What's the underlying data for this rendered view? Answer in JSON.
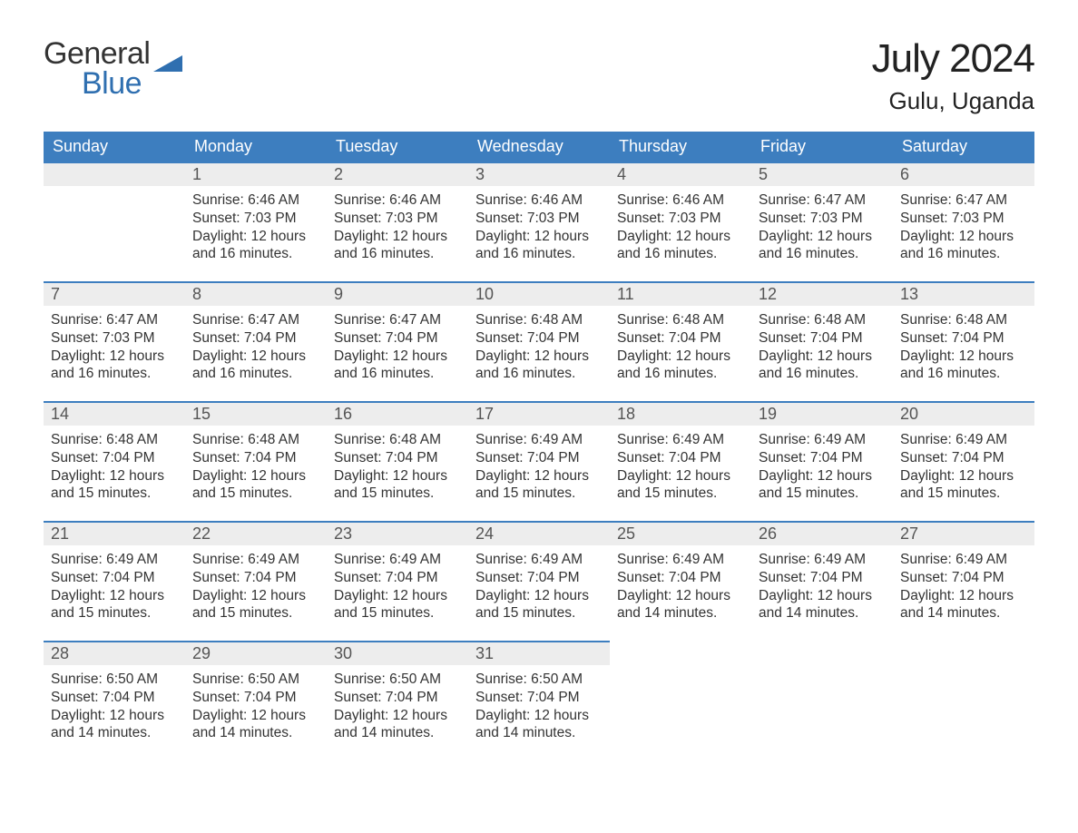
{
  "brand": {
    "word1": "General",
    "word2": "Blue",
    "accent": "#2f6fb0"
  },
  "header": {
    "title": "July 2024",
    "location": "Gulu, Uganda"
  },
  "colors": {
    "header_bg": "#3d7ebf",
    "header_text": "#ffffff",
    "daynum_bg": "#ededed",
    "row_border": "#3d7ebf",
    "page_bg": "#ffffff",
    "text": "#333333"
  },
  "typography": {
    "title_fontsize": 44,
    "location_fontsize": 26,
    "weekday_fontsize": 18,
    "body_fontsize": 15.5
  },
  "weekdays": [
    "Sunday",
    "Monday",
    "Tuesday",
    "Wednesday",
    "Thursday",
    "Friday",
    "Saturday"
  ],
  "labels": {
    "sunrise": "Sunrise:",
    "sunset": "Sunset:",
    "daylight": "Daylight:"
  },
  "grid": {
    "rows": 5,
    "cols": 7,
    "first_weekday_index": 1,
    "days_in_month": 31
  },
  "days": [
    {
      "n": 1,
      "sunrise": "6:46 AM",
      "sunset": "7:03 PM",
      "daylight": "12 hours and 16 minutes."
    },
    {
      "n": 2,
      "sunrise": "6:46 AM",
      "sunset": "7:03 PM",
      "daylight": "12 hours and 16 minutes."
    },
    {
      "n": 3,
      "sunrise": "6:46 AM",
      "sunset": "7:03 PM",
      "daylight": "12 hours and 16 minutes."
    },
    {
      "n": 4,
      "sunrise": "6:46 AM",
      "sunset": "7:03 PM",
      "daylight": "12 hours and 16 minutes."
    },
    {
      "n": 5,
      "sunrise": "6:47 AM",
      "sunset": "7:03 PM",
      "daylight": "12 hours and 16 minutes."
    },
    {
      "n": 6,
      "sunrise": "6:47 AM",
      "sunset": "7:03 PM",
      "daylight": "12 hours and 16 minutes."
    },
    {
      "n": 7,
      "sunrise": "6:47 AM",
      "sunset": "7:03 PM",
      "daylight": "12 hours and 16 minutes."
    },
    {
      "n": 8,
      "sunrise": "6:47 AM",
      "sunset": "7:04 PM",
      "daylight": "12 hours and 16 minutes."
    },
    {
      "n": 9,
      "sunrise": "6:47 AM",
      "sunset": "7:04 PM",
      "daylight": "12 hours and 16 minutes."
    },
    {
      "n": 10,
      "sunrise": "6:48 AM",
      "sunset": "7:04 PM",
      "daylight": "12 hours and 16 minutes."
    },
    {
      "n": 11,
      "sunrise": "6:48 AM",
      "sunset": "7:04 PM",
      "daylight": "12 hours and 16 minutes."
    },
    {
      "n": 12,
      "sunrise": "6:48 AM",
      "sunset": "7:04 PM",
      "daylight": "12 hours and 16 minutes."
    },
    {
      "n": 13,
      "sunrise": "6:48 AM",
      "sunset": "7:04 PM",
      "daylight": "12 hours and 16 minutes."
    },
    {
      "n": 14,
      "sunrise": "6:48 AM",
      "sunset": "7:04 PM",
      "daylight": "12 hours and 15 minutes."
    },
    {
      "n": 15,
      "sunrise": "6:48 AM",
      "sunset": "7:04 PM",
      "daylight": "12 hours and 15 minutes."
    },
    {
      "n": 16,
      "sunrise": "6:48 AM",
      "sunset": "7:04 PM",
      "daylight": "12 hours and 15 minutes."
    },
    {
      "n": 17,
      "sunrise": "6:49 AM",
      "sunset": "7:04 PM",
      "daylight": "12 hours and 15 minutes."
    },
    {
      "n": 18,
      "sunrise": "6:49 AM",
      "sunset": "7:04 PM",
      "daylight": "12 hours and 15 minutes."
    },
    {
      "n": 19,
      "sunrise": "6:49 AM",
      "sunset": "7:04 PM",
      "daylight": "12 hours and 15 minutes."
    },
    {
      "n": 20,
      "sunrise": "6:49 AM",
      "sunset": "7:04 PM",
      "daylight": "12 hours and 15 minutes."
    },
    {
      "n": 21,
      "sunrise": "6:49 AM",
      "sunset": "7:04 PM",
      "daylight": "12 hours and 15 minutes."
    },
    {
      "n": 22,
      "sunrise": "6:49 AM",
      "sunset": "7:04 PM",
      "daylight": "12 hours and 15 minutes."
    },
    {
      "n": 23,
      "sunrise": "6:49 AM",
      "sunset": "7:04 PM",
      "daylight": "12 hours and 15 minutes."
    },
    {
      "n": 24,
      "sunrise": "6:49 AM",
      "sunset": "7:04 PM",
      "daylight": "12 hours and 15 minutes."
    },
    {
      "n": 25,
      "sunrise": "6:49 AM",
      "sunset": "7:04 PM",
      "daylight": "12 hours and 14 minutes."
    },
    {
      "n": 26,
      "sunrise": "6:49 AM",
      "sunset": "7:04 PM",
      "daylight": "12 hours and 14 minutes."
    },
    {
      "n": 27,
      "sunrise": "6:49 AM",
      "sunset": "7:04 PM",
      "daylight": "12 hours and 14 minutes."
    },
    {
      "n": 28,
      "sunrise": "6:50 AM",
      "sunset": "7:04 PM",
      "daylight": "12 hours and 14 minutes."
    },
    {
      "n": 29,
      "sunrise": "6:50 AM",
      "sunset": "7:04 PM",
      "daylight": "12 hours and 14 minutes."
    },
    {
      "n": 30,
      "sunrise": "6:50 AM",
      "sunset": "7:04 PM",
      "daylight": "12 hours and 14 minutes."
    },
    {
      "n": 31,
      "sunrise": "6:50 AM",
      "sunset": "7:04 PM",
      "daylight": "12 hours and 14 minutes."
    }
  ]
}
